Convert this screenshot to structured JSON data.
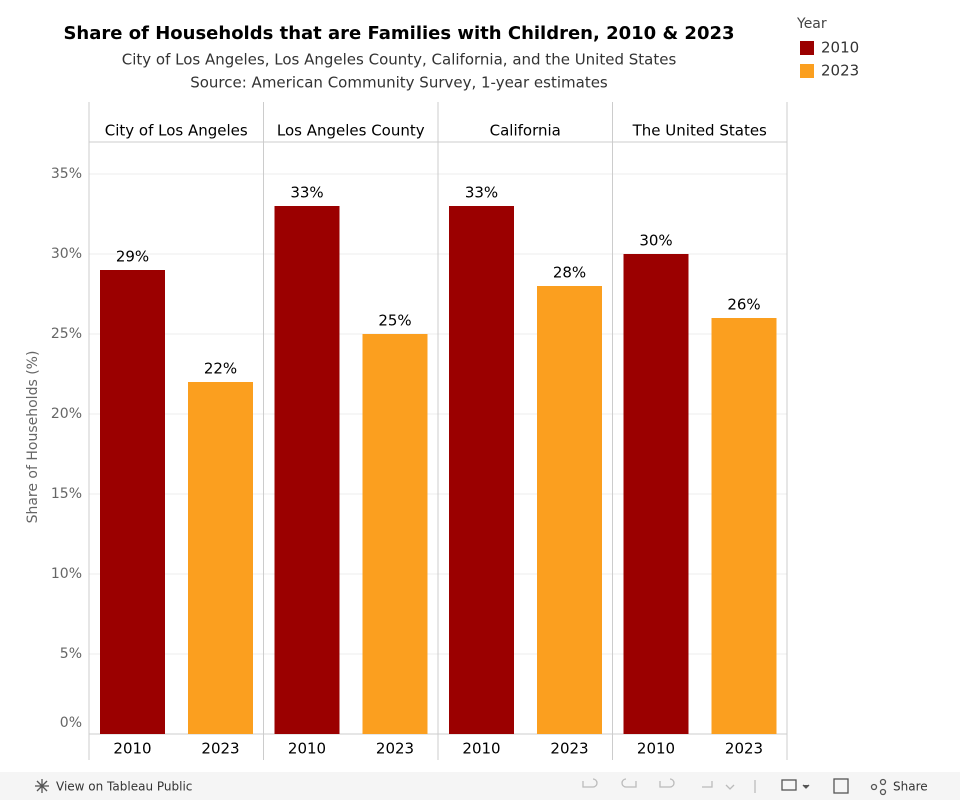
{
  "chart_data": {
    "type": "bar",
    "title": "Share of Households that are Families with Children, 2010 & 2023",
    "subtitle": [
      "City of Los Angeles, Los Angeles County, California, and the United States",
      "Source: American Community Survey, 1-year estimates"
    ],
    "y_label": "Share of Households (%)",
    "legend_title": "Year",
    "categories": [
      "City of Los Angeles",
      "Los Angeles County",
      "California",
      "The United States"
    ],
    "series": [
      {
        "name": "2010",
        "color": "#9b0000",
        "values": [
          29,
          33,
          33,
          30
        ],
        "value_labels": [
          "29%",
          "33%",
          "33%",
          "30%"
        ]
      },
      {
        "name": "2023",
        "color": "#fb9f1f",
        "values": [
          22,
          25,
          28,
          26
        ],
        "value_labels": [
          "22%",
          "25%",
          "28%",
          "26%"
        ]
      }
    ],
    "ylim": [
      0,
      37
    ],
    "yticks": [
      {
        "value": 0,
        "label": "0%"
      },
      {
        "value": 5,
        "label": "5%"
      },
      {
        "value": 10,
        "label": "10%"
      },
      {
        "value": 15,
        "label": "15%"
      },
      {
        "value": 20,
        "label": "20%"
      },
      {
        "value": 25,
        "label": "25%"
      },
      {
        "value": 30,
        "label": "30%"
      },
      {
        "value": 35,
        "label": "35%"
      }
    ],
    "grid": true
  },
  "toolbar": {
    "view": "View on Tableau Public",
    "share": "Share"
  }
}
